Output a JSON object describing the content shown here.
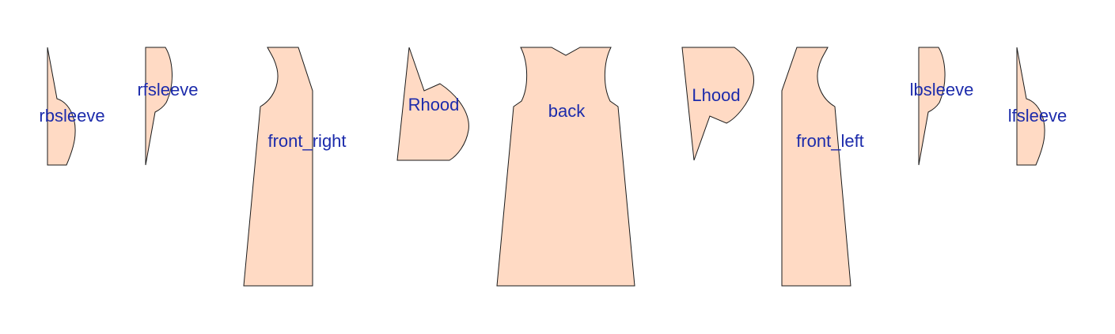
{
  "colors": {
    "piece_fill": "#ffdac4",
    "piece_stroke": "#1a1a1a",
    "label_color": "#1c2bab"
  },
  "pieces": [
    {
      "id": "rbsleeve",
      "label": "rbsleeve"
    },
    {
      "id": "rfsleeve",
      "label": "rfsleeve"
    },
    {
      "id": "front_right",
      "label": "front_right"
    },
    {
      "id": "rhood",
      "label": "Rhood"
    },
    {
      "id": "back",
      "label": "back"
    },
    {
      "id": "lhood",
      "label": "Lhood"
    },
    {
      "id": "front_left",
      "label": "front_left"
    },
    {
      "id": "lbsleeve",
      "label": "lbsleeve"
    },
    {
      "id": "lfsleeve",
      "label": "lfsleeve"
    }
  ]
}
